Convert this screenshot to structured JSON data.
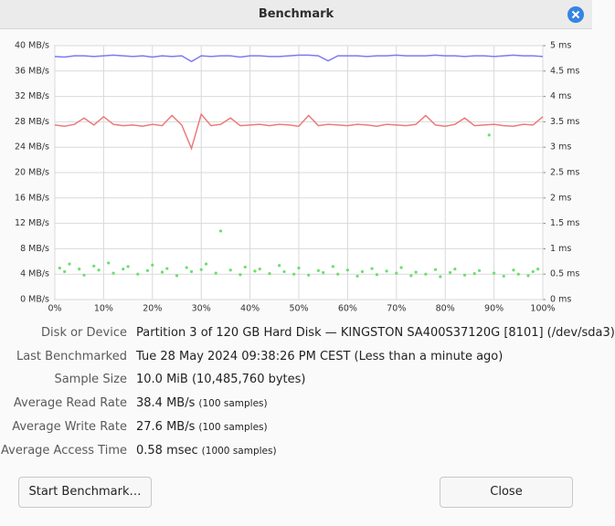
{
  "dialog": {
    "title": "Benchmark"
  },
  "chart_data": {
    "type": "line",
    "x": [
      0,
      2,
      4,
      6,
      8,
      10,
      12,
      14,
      16,
      18,
      20,
      22,
      24,
      26,
      28,
      30,
      32,
      34,
      36,
      38,
      40,
      42,
      44,
      46,
      48,
      50,
      52,
      54,
      56,
      58,
      60,
      62,
      64,
      66,
      68,
      70,
      72,
      74,
      76,
      78,
      80,
      82,
      84,
      86,
      88,
      90,
      92,
      94,
      96,
      98,
      100
    ],
    "xlim": [
      0,
      100
    ],
    "xticks": [
      {
        "value": 0,
        "label": "0%"
      },
      {
        "value": 10,
        "label": "10%"
      },
      {
        "value": 20,
        "label": "20%"
      },
      {
        "value": 30,
        "label": "30%"
      },
      {
        "value": 40,
        "label": "40%"
      },
      {
        "value": 50,
        "label": "50%"
      },
      {
        "value": 60,
        "label": "60%"
      },
      {
        "value": 70,
        "label": "70%"
      },
      {
        "value": 80,
        "label": "80%"
      },
      {
        "value": 90,
        "label": "90%"
      },
      {
        "value": 100,
        "label": "100%"
      }
    ],
    "ylim": [
      0,
      40
    ],
    "yticks": [
      {
        "value": 0,
        "label": "0 MB/s"
      },
      {
        "value": 4,
        "label": "4 MB/s"
      },
      {
        "value": 8,
        "label": "8 MB/s"
      },
      {
        "value": 12,
        "label": "12 MB/s"
      },
      {
        "value": 16,
        "label": "16 MB/s"
      },
      {
        "value": 20,
        "label": "20 MB/s"
      },
      {
        "value": 24,
        "label": "24 MB/s"
      },
      {
        "value": 28,
        "label": "28 MB/s"
      },
      {
        "value": 32,
        "label": "32 MB/s"
      },
      {
        "value": 36,
        "label": "36 MB/s"
      },
      {
        "value": 40,
        "label": "40 MB/s"
      }
    ],
    "y2lim": [
      0,
      5
    ],
    "y2ticks": [
      {
        "value": 0,
        "label": "0 ms"
      },
      {
        "value": 0.5,
        "label": "0.5 ms"
      },
      {
        "value": 1,
        "label": "1 ms"
      },
      {
        "value": 1.5,
        "label": "1.5 ms"
      },
      {
        "value": 2,
        "label": "2 ms"
      },
      {
        "value": 2.5,
        "label": "2.5 ms"
      },
      {
        "value": 3,
        "label": "3 ms"
      },
      {
        "value": 3.5,
        "label": "3.5 ms"
      },
      {
        "value": 4,
        "label": "4 ms"
      },
      {
        "value": 4.5,
        "label": "4.5 ms"
      },
      {
        "value": 5,
        "label": "5 ms"
      }
    ],
    "grid": true,
    "series": [
      {
        "color": "#7b7bf0",
        "values": [
          38.3,
          38.2,
          38.4,
          38.4,
          38.3,
          38.4,
          38.5,
          38.4,
          38.3,
          38.4,
          38.2,
          38.4,
          38.3,
          38.4,
          37.5,
          38.4,
          38.3,
          38.4,
          38.4,
          38.2,
          38.4,
          38.4,
          38.3,
          38.3,
          38.4,
          38.5,
          38.5,
          38.4,
          37.6,
          38.4,
          38.4,
          38.4,
          38.3,
          38.4,
          38.4,
          38.5,
          38.4,
          38.4,
          38.4,
          38.5,
          38.4,
          38.4,
          38.3,
          38.4,
          38.4,
          38.3,
          38.4,
          38.5,
          38.4,
          38.4,
          38.3
        ]
      },
      {
        "color": "#ec7b7b",
        "values": [
          27.5,
          27.3,
          27.6,
          28.6,
          27.5,
          28.8,
          27.6,
          27.4,
          27.5,
          27.3,
          27.6,
          27.4,
          29.0,
          27.5,
          23.8,
          29.2,
          27.4,
          27.6,
          28.6,
          27.4,
          27.5,
          27.6,
          27.4,
          27.6,
          27.5,
          27.3,
          29.0,
          27.4,
          27.6,
          27.5,
          27.4,
          27.6,
          27.5,
          27.3,
          27.6,
          27.5,
          27.4,
          27.6,
          29.0,
          27.5,
          27.3,
          27.6,
          28.6,
          27.4,
          27.5,
          27.6,
          27.4,
          27.3,
          27.6,
          27.5,
          28.8
        ]
      },
      {
        "color": "#6ae06a",
        "type": "scatter",
        "axis": "y2",
        "x": [
          1,
          2,
          3,
          5,
          6,
          8,
          9,
          11,
          12,
          14,
          15,
          17,
          19,
          20,
          22,
          23,
          25,
          27,
          28,
          30,
          31,
          33,
          34,
          36,
          38,
          39,
          41,
          42,
          44,
          46,
          47,
          49,
          50,
          52,
          54,
          55,
          57,
          58,
          60,
          62,
          63,
          65,
          66,
          68,
          70,
          71,
          73,
          74,
          76,
          78,
          79,
          81,
          82,
          84,
          86,
          87,
          89,
          90,
          92,
          94,
          95,
          97,
          98,
          99
        ],
        "values": [
          0.62,
          0.55,
          0.7,
          0.6,
          0.48,
          0.66,
          0.58,
          0.72,
          0.52,
          0.6,
          0.65,
          0.5,
          0.57,
          0.68,
          0.54,
          0.61,
          0.47,
          0.63,
          0.55,
          0.59,
          0.7,
          0.52,
          1.35,
          0.58,
          0.49,
          0.64,
          0.56,
          0.6,
          0.51,
          0.67,
          0.55,
          0.5,
          0.62,
          0.48,
          0.57,
          0.53,
          0.65,
          0.5,
          0.58,
          0.46,
          0.55,
          0.61,
          0.49,
          0.56,
          0.52,
          0.63,
          0.47,
          0.54,
          0.5,
          0.59,
          0.45,
          0.53,
          0.6,
          0.48,
          0.51,
          0.57,
          3.24,
          0.52,
          0.46,
          0.58,
          0.5,
          0.47,
          0.55,
          0.6
        ]
      }
    ]
  },
  "info": {
    "rows": [
      {
        "label": "Disk or Device",
        "value": "Partition 3 of 120 GB Hard Disk — KINGSTON SA400S37120G [8101] (/dev/sda3)"
      },
      {
        "label": "Last Benchmarked",
        "value": "Tue 28 May 2024 09:38:26 PM CEST (Less than a minute ago)"
      },
      {
        "label": "Sample Size",
        "value": "10.0 MiB (10,485,760 bytes)"
      },
      {
        "label": "Average Read Rate",
        "value": "38.4 MB/s",
        "note": "(100 samples)"
      },
      {
        "label": "Average Write Rate",
        "value": "27.6 MB/s",
        "note": "(100 samples)"
      },
      {
        "label": "Average Access Time",
        "value": "0.58 msec",
        "note": "(1000 samples)"
      }
    ]
  },
  "buttons": {
    "start": "Start Benchmark…",
    "close": "Close"
  }
}
